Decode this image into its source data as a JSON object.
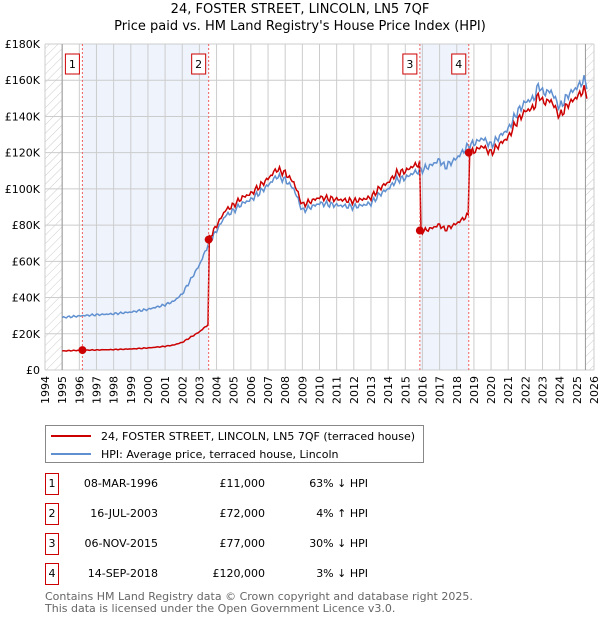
{
  "chart_data": {
    "type": "line",
    "title": "24, FOSTER STREET, LINCOLN, LN5 7QF",
    "subtitle": "Price paid vs. HM Land Registry's House Price Index (HPI)",
    "xlim": [
      1994,
      2026
    ],
    "ylim": [
      0,
      180000
    ],
    "y_ticks": [
      "£0",
      "£20K",
      "£40K",
      "£60K",
      "£80K",
      "£100K",
      "£120K",
      "£140K",
      "£160K",
      "£180K"
    ],
    "x_ticks": [
      "1994",
      "1995",
      "1996",
      "1997",
      "1998",
      "1999",
      "2000",
      "2001",
      "2002",
      "2003",
      "2004",
      "2005",
      "2006",
      "2007",
      "2008",
      "2009",
      "2010",
      "2011",
      "2012",
      "2013",
      "2014",
      "2015",
      "2016",
      "2017",
      "2018",
      "2019",
      "2020",
      "2021",
      "2022",
      "2023",
      "2024",
      "2025",
      "2026"
    ],
    "grid": true,
    "colors": {
      "property": "#cc0000",
      "hpi": "#6090d0",
      "shade": "#eef3fc"
    },
    "hpi_series": {
      "x": [
        1995,
        1996.2,
        1997,
        1998,
        1999,
        2000,
        2001,
        2001.5,
        2002,
        2002.5,
        2003,
        2003.5,
        2004,
        2004.5,
        2005,
        2005.5,
        2006,
        2006.5,
        2007,
        2007.5,
        2008,
        2008.5,
        2009,
        2009.5,
        2010,
        2011,
        2012,
        2013,
        2013.5,
        2014,
        2014.5,
        2015,
        2015.5,
        2015.85,
        2016.5,
        2017,
        2017.3,
        2018,
        2018.5,
        2018.7,
        2019,
        2019.5,
        2020,
        2020.5,
        2021,
        2021.5,
        2022,
        2022.5,
        2022.8,
        2023,
        2023.5,
        2024,
        2024.5,
        2025,
        2025.4,
        2025.6
      ],
      "y": [
        29000,
        30000,
        30500,
        31000,
        32000,
        33500,
        36000,
        38000,
        42000,
        50000,
        58000,
        69000,
        77000,
        85000,
        88000,
        92000,
        94000,
        98000,
        102000,
        107000,
        105000,
        100000,
        88000,
        90000,
        92000,
        91000,
        90000,
        92000,
        97000,
        100000,
        105000,
        106000,
        109000,
        110000,
        113000,
        116000,
        112000,
        117000,
        122000,
        124000,
        125000,
        128000,
        124000,
        129000,
        133000,
        142000,
        148000,
        150000,
        158000,
        153000,
        154000,
        145000,
        152000,
        156000,
        160000,
        158000
      ]
    },
    "sales": [
      {
        "n": "1",
        "x": 1996.18,
        "date": "08-MAR-1996",
        "price": 11000,
        "price_label": "£11,000",
        "hpi_label": "63% ↓ HPI"
      },
      {
        "n": "2",
        "x": 2003.54,
        "date": "16-JUL-2003",
        "price": 72000,
        "price_label": "£72,000",
        "hpi_label": "4% ↑ HPI"
      },
      {
        "n": "3",
        "x": 2015.85,
        "date": "06-NOV-2015",
        "price": 77000,
        "price_label": "£77,000",
        "hpi_label": "30% ↓ HPI"
      },
      {
        "n": "4",
        "x": 2018.7,
        "date": "14-SEP-2018",
        "price": 120000,
        "price_label": "£120,000",
        "hpi_label": "3% ↓ HPI"
      }
    ]
  },
  "legend": {
    "property": "24, FOSTER STREET, LINCOLN, LN5 7QF (terraced house)",
    "hpi": "HPI: Average price, terraced house, Lincoln"
  },
  "footer": {
    "line1": "Contains HM Land Registry data © Crown copyright and database right 2025.",
    "line2": "This data is licensed under the Open Government Licence v3.0."
  }
}
